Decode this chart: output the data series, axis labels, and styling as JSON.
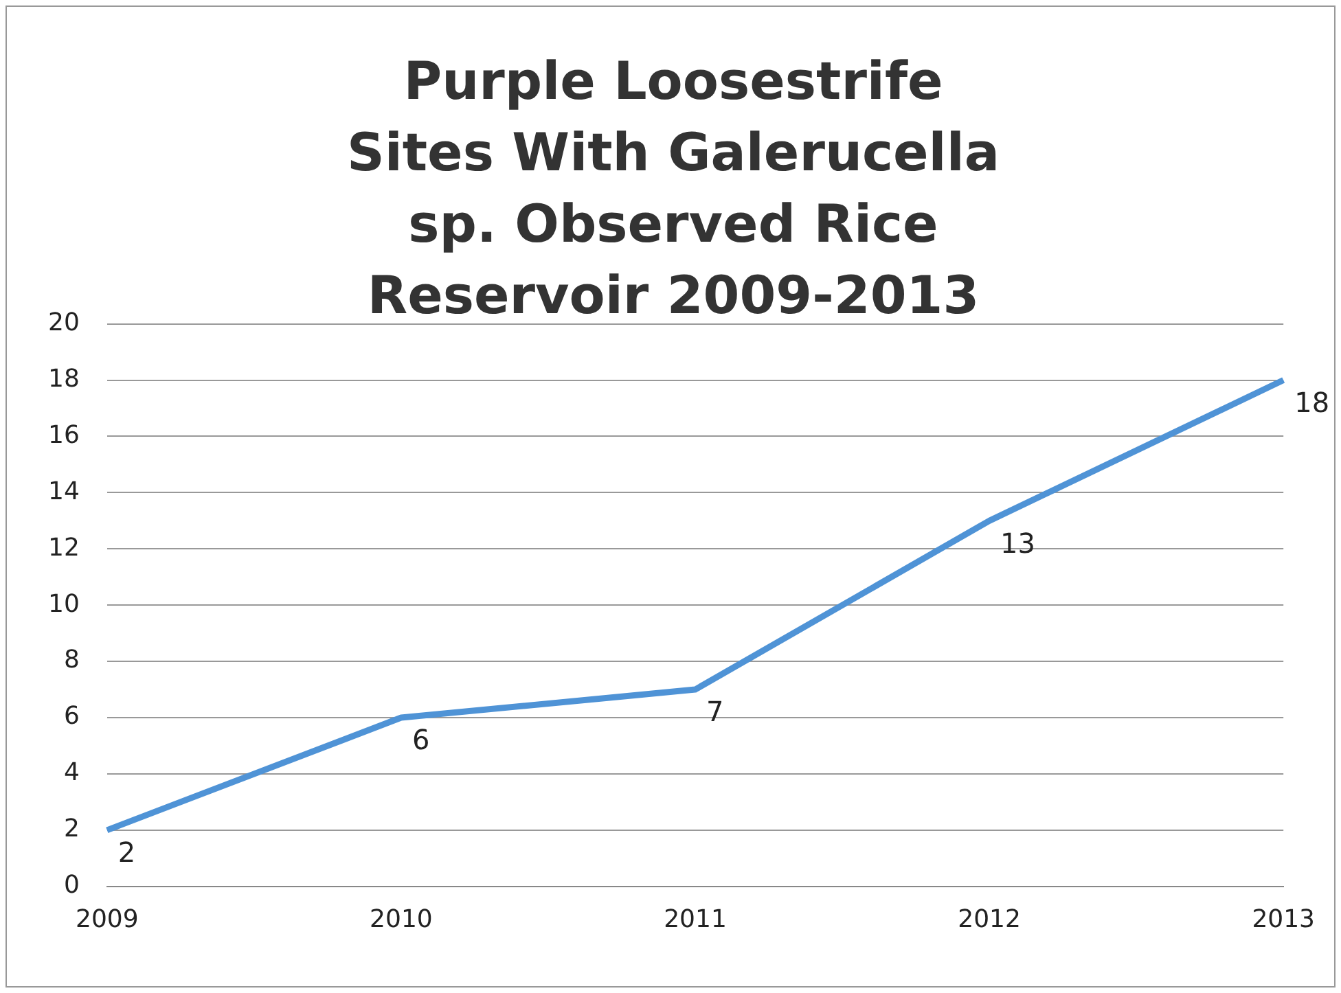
{
  "chart_data": {
    "type": "line",
    "title": "Purple Loosestrife Sites With Galerucella sp. Observed Rice Reservoir 2009-2013",
    "categories": [
      "2009",
      "2010",
      "2011",
      "2012",
      "2013"
    ],
    "values": [
      2,
      6,
      7,
      13,
      18
    ],
    "color": "#4f93d6",
    "ylim": [
      0,
      20
    ],
    "yticks": [
      0,
      2,
      4,
      6,
      8,
      10,
      12,
      14,
      16,
      18,
      20
    ],
    "grid": "y",
    "data_labels": true,
    "marker": "none",
    "line_style": "solid"
  }
}
